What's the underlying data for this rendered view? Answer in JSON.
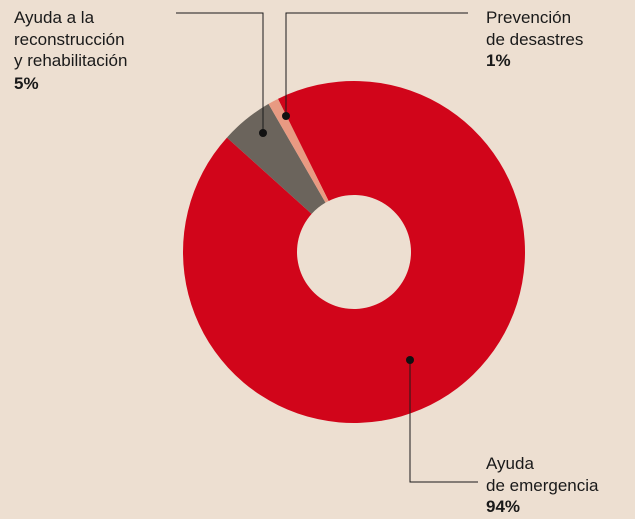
{
  "chart_data": {
    "type": "donut",
    "categories": [
      "Ayuda\nde emergencia",
      "Ayuda a la\nreconstrucción\ny rehabilitación",
      "Prevención\nde desastres"
    ],
    "values": [
      94,
      5,
      1
    ],
    "value_labels": [
      "94%",
      "5%",
      "1%"
    ],
    "colors": [
      "#d1051a",
      "#6b645c",
      "#e89a82"
    ]
  }
}
